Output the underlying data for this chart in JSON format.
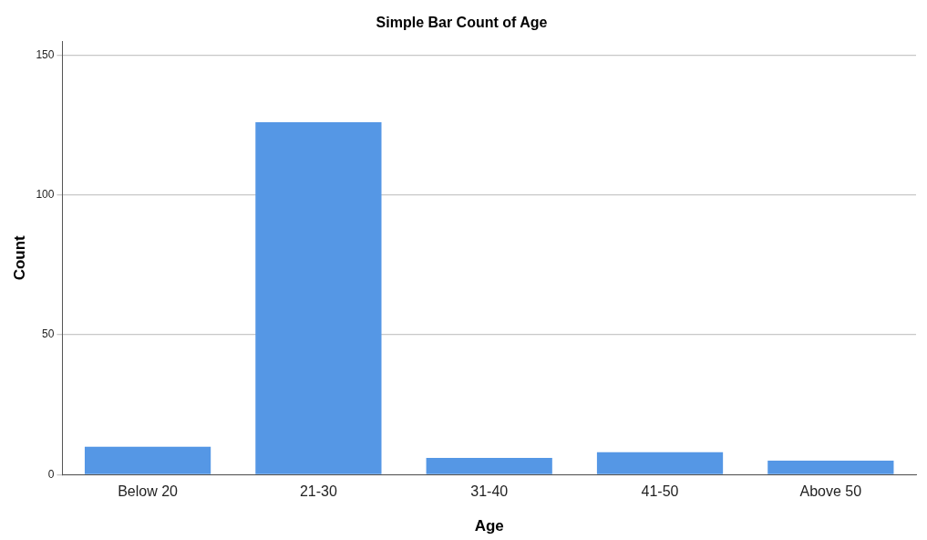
{
  "chart_data": {
    "type": "bar",
    "title": "Simple Bar Count of Age",
    "xlabel": "Age",
    "ylabel": "Count",
    "categories": [
      "Below 20",
      "21-30",
      "31-40",
      "41-50",
      "Above 50"
    ],
    "values": [
      10,
      126,
      6,
      8,
      5
    ],
    "color": "#5597e5",
    "ylim": [
      0,
      155
    ],
    "yticks": [
      0,
      50,
      100,
      150
    ],
    "grid": "y",
    "legend": false
  }
}
